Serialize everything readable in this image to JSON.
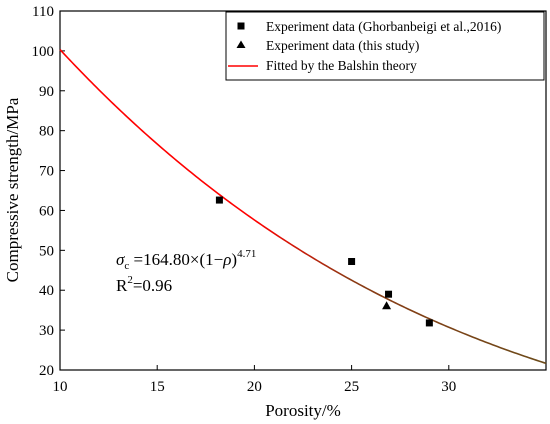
{
  "chart_data": {
    "type": "scatter",
    "xlabel": "Porosity/%",
    "ylabel": "Compressive strength/MPa",
    "xlim": [
      10,
      35
    ],
    "ylim": [
      20,
      110
    ],
    "x_ticks": [
      10,
      15,
      20,
      25,
      30
    ],
    "y_ticks": [
      20,
      30,
      40,
      50,
      60,
      70,
      80,
      90,
      100,
      110
    ],
    "grid": false,
    "legend_position": "top-right",
    "series": [
      {
        "name": "Experiment data (Ghorbanbeigi et al.,2016)",
        "marker": "square",
        "color": "#000000",
        "points": [
          {
            "x": 18.2,
            "y": 62.6
          },
          {
            "x": 25.0,
            "y": 47.2
          },
          {
            "x": 26.9,
            "y": 39.0
          },
          {
            "x": 29.0,
            "y": 31.8
          }
        ]
      },
      {
        "name": "Experiment data (this study)",
        "marker": "triangle",
        "color": "#000000",
        "points": [
          {
            "x": 26.8,
            "y": 36.1
          }
        ]
      }
    ],
    "fit": {
      "name": "Fitted by the Balshin theory",
      "coefficient": 164.8,
      "exponent": 4.71,
      "color_start": "#ff0000",
      "color_end": "#6b4b1a"
    },
    "annotation": {
      "sigma": "σ",
      "sigma_sub": "c",
      "formula_main": " =164.80×(1−",
      "rho": "ρ",
      "formula_close": ")",
      "formula_exp": "4.71",
      "r_label": "R",
      "r_exp": "2",
      "r_value": "=0.96"
    }
  }
}
